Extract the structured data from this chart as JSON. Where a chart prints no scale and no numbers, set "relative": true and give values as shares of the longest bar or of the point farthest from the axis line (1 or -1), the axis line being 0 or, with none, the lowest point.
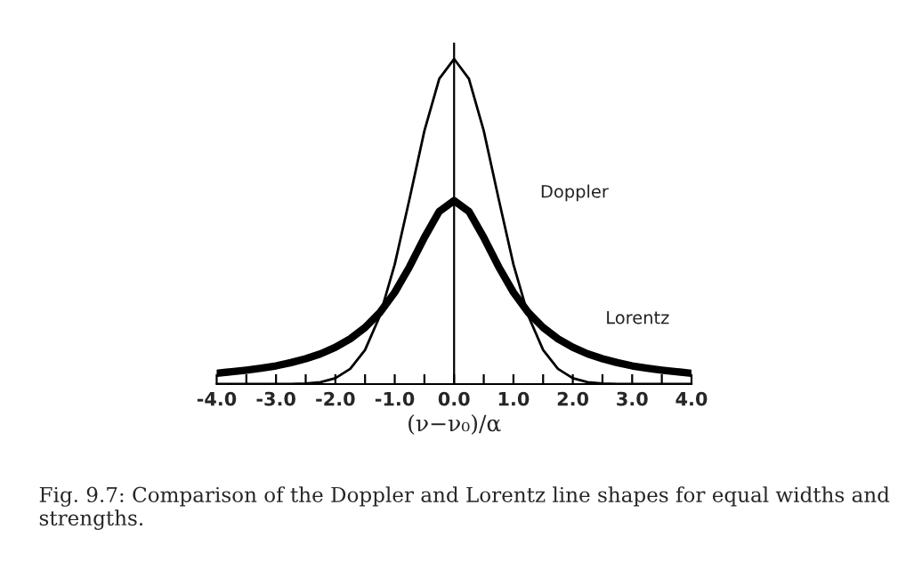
{
  "chart_data": {
    "type": "line",
    "relative": true,
    "xlabel": "(ν−ν₀)/α",
    "annotations": [
      "Fig. 9.7: Comparison of the Doppler and Lorentz line shapes for equal widths and strengths."
    ],
    "x": [
      -4,
      -3.75,
      -3.5,
      -3.25,
      -3,
      -2.75,
      -2.5,
      -2.25,
      -2,
      -1.75,
      -1.5,
      -1.25,
      -1,
      -0.75,
      -0.5,
      -0.25,
      0,
      0.25,
      0.5,
      0.75,
      1,
      1.25,
      1.5,
      1.75,
      2,
      2.25,
      2.5,
      2.75,
      3,
      3.25,
      3.5,
      3.75,
      4
    ],
    "xlim": [
      -4,
      4
    ],
    "xticks": [
      {
        "value": -4,
        "label": "-4.0"
      },
      {
        "value": -3.5,
        "label": null
      },
      {
        "value": -3,
        "label": "-3.0"
      },
      {
        "value": -2.5,
        "label": null
      },
      {
        "value": -2,
        "label": "-2.0"
      },
      {
        "value": -1.5,
        "label": null
      },
      {
        "value": -1,
        "label": "-1.0"
      },
      {
        "value": -0.5,
        "label": null
      },
      {
        "value": 0,
        "label": "0.0"
      },
      {
        "value": 0.5,
        "label": null
      },
      {
        "value": 1,
        "label": "1.0"
      },
      {
        "value": 1.5,
        "label": null
      },
      {
        "value": 2,
        "label": "2.0"
      },
      {
        "value": 2.5,
        "label": null
      },
      {
        "value": 3,
        "label": "3.0"
      },
      {
        "value": 3.5,
        "label": null
      },
      {
        "value": 4,
        "label": "4.0"
      }
    ],
    "series": [
      {
        "name": "Doppler",
        "color": "#000000",
        "values": [
          0,
          0,
          0,
          0,
          0,
          0,
          0.002,
          0.006,
          0.018,
          0.047,
          0.105,
          0.21,
          0.368,
          0.57,
          0.779,
          0.939,
          1,
          0.939,
          0.779,
          0.57,
          0.368,
          0.21,
          0.105,
          0.047,
          0.018,
          0.006,
          0.002,
          0,
          0,
          0,
          0,
          0,
          0
        ]
      },
      {
        "name": "Lorentz",
        "color": "#000000",
        "values": [
          0.033,
          0.038,
          0.043,
          0.049,
          0.056,
          0.066,
          0.078,
          0.093,
          0.113,
          0.139,
          0.174,
          0.22,
          0.282,
          0.361,
          0.451,
          0.531,
          0.564,
          0.531,
          0.451,
          0.361,
          0.282,
          0.22,
          0.174,
          0.139,
          0.113,
          0.093,
          0.078,
          0.066,
          0.056,
          0.049,
          0.043,
          0.038,
          0.033
        ]
      }
    ],
    "ref_lines": [
      {
        "axis": "x",
        "value": 0,
        "color": "#000000"
      }
    ],
    "grid": false,
    "legend": false,
    "marker": "none",
    "line_style": "solid"
  }
}
